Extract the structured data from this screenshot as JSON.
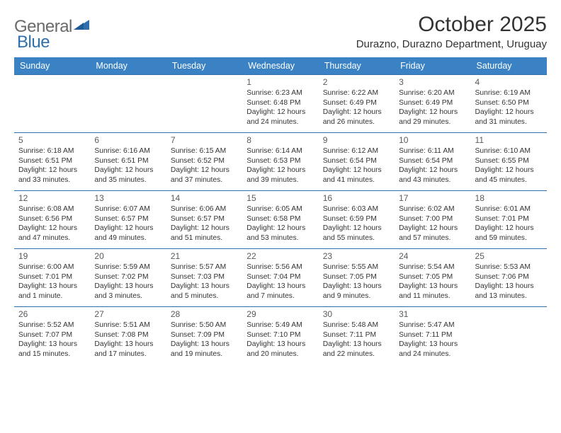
{
  "brand": {
    "word1": "General",
    "word2": "Blue"
  },
  "title": "October 2025",
  "location": "Durazno, Durazno Department, Uruguay",
  "colors": {
    "header_bg": "#3a82c4",
    "header_text": "#ffffff",
    "rule": "#2f6fae",
    "text": "#333333",
    "muted": "#5a5a5a",
    "logo_gray": "#6a6a6a",
    "logo_blue": "#2f6fae",
    "page_bg": "#ffffff"
  },
  "fonts": {
    "title_size_pt": 22,
    "location_size_pt": 11,
    "header_size_pt": 9,
    "cell_size_pt": 7.7
  },
  "dayHeaders": [
    "Sunday",
    "Monday",
    "Tuesday",
    "Wednesday",
    "Thursday",
    "Friday",
    "Saturday"
  ],
  "weeks": [
    [
      null,
      null,
      null,
      {
        "n": "1",
        "sr": "Sunrise: 6:23 AM",
        "ss": "Sunset: 6:48 PM",
        "d1": "Daylight: 12 hours",
        "d2": "and 24 minutes."
      },
      {
        "n": "2",
        "sr": "Sunrise: 6:22 AM",
        "ss": "Sunset: 6:49 PM",
        "d1": "Daylight: 12 hours",
        "d2": "and 26 minutes."
      },
      {
        "n": "3",
        "sr": "Sunrise: 6:20 AM",
        "ss": "Sunset: 6:49 PM",
        "d1": "Daylight: 12 hours",
        "d2": "and 29 minutes."
      },
      {
        "n": "4",
        "sr": "Sunrise: 6:19 AM",
        "ss": "Sunset: 6:50 PM",
        "d1": "Daylight: 12 hours",
        "d2": "and 31 minutes."
      }
    ],
    [
      {
        "n": "5",
        "sr": "Sunrise: 6:18 AM",
        "ss": "Sunset: 6:51 PM",
        "d1": "Daylight: 12 hours",
        "d2": "and 33 minutes."
      },
      {
        "n": "6",
        "sr": "Sunrise: 6:16 AM",
        "ss": "Sunset: 6:51 PM",
        "d1": "Daylight: 12 hours",
        "d2": "and 35 minutes."
      },
      {
        "n": "7",
        "sr": "Sunrise: 6:15 AM",
        "ss": "Sunset: 6:52 PM",
        "d1": "Daylight: 12 hours",
        "d2": "and 37 minutes."
      },
      {
        "n": "8",
        "sr": "Sunrise: 6:14 AM",
        "ss": "Sunset: 6:53 PM",
        "d1": "Daylight: 12 hours",
        "d2": "and 39 minutes."
      },
      {
        "n": "9",
        "sr": "Sunrise: 6:12 AM",
        "ss": "Sunset: 6:54 PM",
        "d1": "Daylight: 12 hours",
        "d2": "and 41 minutes."
      },
      {
        "n": "10",
        "sr": "Sunrise: 6:11 AM",
        "ss": "Sunset: 6:54 PM",
        "d1": "Daylight: 12 hours",
        "d2": "and 43 minutes."
      },
      {
        "n": "11",
        "sr": "Sunrise: 6:10 AM",
        "ss": "Sunset: 6:55 PM",
        "d1": "Daylight: 12 hours",
        "d2": "and 45 minutes."
      }
    ],
    [
      {
        "n": "12",
        "sr": "Sunrise: 6:08 AM",
        "ss": "Sunset: 6:56 PM",
        "d1": "Daylight: 12 hours",
        "d2": "and 47 minutes."
      },
      {
        "n": "13",
        "sr": "Sunrise: 6:07 AM",
        "ss": "Sunset: 6:57 PM",
        "d1": "Daylight: 12 hours",
        "d2": "and 49 minutes."
      },
      {
        "n": "14",
        "sr": "Sunrise: 6:06 AM",
        "ss": "Sunset: 6:57 PM",
        "d1": "Daylight: 12 hours",
        "d2": "and 51 minutes."
      },
      {
        "n": "15",
        "sr": "Sunrise: 6:05 AM",
        "ss": "Sunset: 6:58 PM",
        "d1": "Daylight: 12 hours",
        "d2": "and 53 minutes."
      },
      {
        "n": "16",
        "sr": "Sunrise: 6:03 AM",
        "ss": "Sunset: 6:59 PM",
        "d1": "Daylight: 12 hours",
        "d2": "and 55 minutes."
      },
      {
        "n": "17",
        "sr": "Sunrise: 6:02 AM",
        "ss": "Sunset: 7:00 PM",
        "d1": "Daylight: 12 hours",
        "d2": "and 57 minutes."
      },
      {
        "n": "18",
        "sr": "Sunrise: 6:01 AM",
        "ss": "Sunset: 7:01 PM",
        "d1": "Daylight: 12 hours",
        "d2": "and 59 minutes."
      }
    ],
    [
      {
        "n": "19",
        "sr": "Sunrise: 6:00 AM",
        "ss": "Sunset: 7:01 PM",
        "d1": "Daylight: 13 hours",
        "d2": "and 1 minute."
      },
      {
        "n": "20",
        "sr": "Sunrise: 5:59 AM",
        "ss": "Sunset: 7:02 PM",
        "d1": "Daylight: 13 hours",
        "d2": "and 3 minutes."
      },
      {
        "n": "21",
        "sr": "Sunrise: 5:57 AM",
        "ss": "Sunset: 7:03 PM",
        "d1": "Daylight: 13 hours",
        "d2": "and 5 minutes."
      },
      {
        "n": "22",
        "sr": "Sunrise: 5:56 AM",
        "ss": "Sunset: 7:04 PM",
        "d1": "Daylight: 13 hours",
        "d2": "and 7 minutes."
      },
      {
        "n": "23",
        "sr": "Sunrise: 5:55 AM",
        "ss": "Sunset: 7:05 PM",
        "d1": "Daylight: 13 hours",
        "d2": "and 9 minutes."
      },
      {
        "n": "24",
        "sr": "Sunrise: 5:54 AM",
        "ss": "Sunset: 7:05 PM",
        "d1": "Daylight: 13 hours",
        "d2": "and 11 minutes."
      },
      {
        "n": "25",
        "sr": "Sunrise: 5:53 AM",
        "ss": "Sunset: 7:06 PM",
        "d1": "Daylight: 13 hours",
        "d2": "and 13 minutes."
      }
    ],
    [
      {
        "n": "26",
        "sr": "Sunrise: 5:52 AM",
        "ss": "Sunset: 7:07 PM",
        "d1": "Daylight: 13 hours",
        "d2": "and 15 minutes."
      },
      {
        "n": "27",
        "sr": "Sunrise: 5:51 AM",
        "ss": "Sunset: 7:08 PM",
        "d1": "Daylight: 13 hours",
        "d2": "and 17 minutes."
      },
      {
        "n": "28",
        "sr": "Sunrise: 5:50 AM",
        "ss": "Sunset: 7:09 PM",
        "d1": "Daylight: 13 hours",
        "d2": "and 19 minutes."
      },
      {
        "n": "29",
        "sr": "Sunrise: 5:49 AM",
        "ss": "Sunset: 7:10 PM",
        "d1": "Daylight: 13 hours",
        "d2": "and 20 minutes."
      },
      {
        "n": "30",
        "sr": "Sunrise: 5:48 AM",
        "ss": "Sunset: 7:11 PM",
        "d1": "Daylight: 13 hours",
        "d2": "and 22 minutes."
      },
      {
        "n": "31",
        "sr": "Sunrise: 5:47 AM",
        "ss": "Sunset: 7:11 PM",
        "d1": "Daylight: 13 hours",
        "d2": "and 24 minutes."
      },
      null
    ]
  ]
}
